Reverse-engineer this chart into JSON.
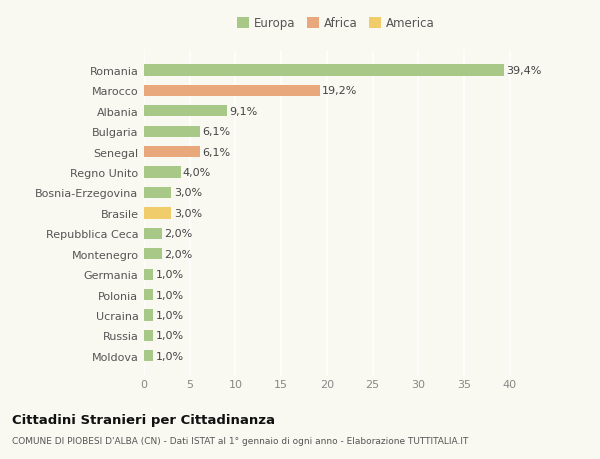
{
  "countries": [
    "Romania",
    "Marocco",
    "Albania",
    "Bulgaria",
    "Senegal",
    "Regno Unito",
    "Bosnia-Erzegovina",
    "Brasile",
    "Repubblica Ceca",
    "Montenegro",
    "Germania",
    "Polonia",
    "Ucraina",
    "Russia",
    "Moldova"
  ],
  "values": [
    39.4,
    19.2,
    9.1,
    6.1,
    6.1,
    4.0,
    3.0,
    3.0,
    2.0,
    2.0,
    1.0,
    1.0,
    1.0,
    1.0,
    1.0
  ],
  "labels": [
    "39,4%",
    "19,2%",
    "9,1%",
    "6,1%",
    "6,1%",
    "4,0%",
    "3,0%",
    "3,0%",
    "2,0%",
    "2,0%",
    "1,0%",
    "1,0%",
    "1,0%",
    "1,0%",
    "1,0%"
  ],
  "continents": [
    "Europa",
    "Africa",
    "Europa",
    "Europa",
    "Africa",
    "Europa",
    "Europa",
    "America",
    "Europa",
    "Europa",
    "Europa",
    "Europa",
    "Europa",
    "Europa",
    "Europa"
  ],
  "colors": {
    "Europa": "#a8c888",
    "Africa": "#e8a87c",
    "America": "#f0cc6a"
  },
  "title1": "Cittadini Stranieri per Cittadinanza",
  "title2": "COMUNE DI PIOBESI D'ALBA (CN) - Dati ISTAT al 1° gennaio di ogni anno - Elaborazione TUTTITALIA.IT",
  "xlim": [
    0,
    42
  ],
  "xticks": [
    0,
    5,
    10,
    15,
    20,
    25,
    30,
    35,
    40
  ],
  "background_color": "#f9f9f2",
  "grid_color": "#ffffff",
  "bar_height": 0.55,
  "label_fontsize": 8,
  "ytick_fontsize": 8,
  "xtick_fontsize": 8
}
